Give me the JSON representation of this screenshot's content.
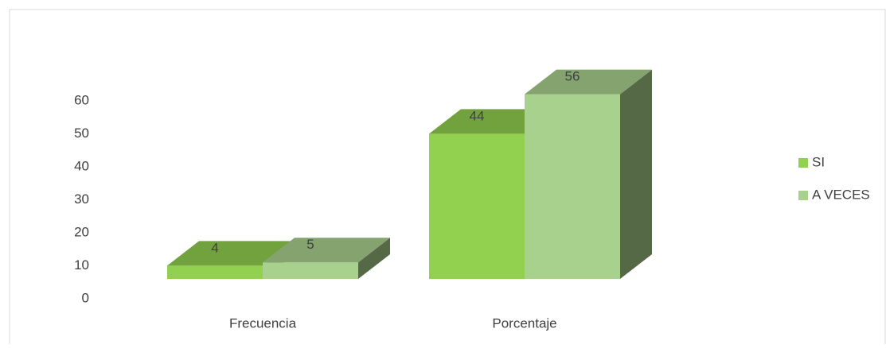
{
  "chart_data": {
    "type": "bar3d",
    "categories": [
      "Frecuencia",
      "Porcentaje"
    ],
    "series": [
      {
        "name": "SI",
        "color": "#92d050",
        "values": [
          4,
          44
        ]
      },
      {
        "name": "A VECES",
        "color": "#a9d18e",
        "values": [
          5,
          56
        ]
      }
    ],
    "ylim": [
      0,
      60
    ],
    "yticks": [
      0,
      10,
      20,
      30,
      40,
      50,
      60
    ],
    "legend": "right"
  }
}
